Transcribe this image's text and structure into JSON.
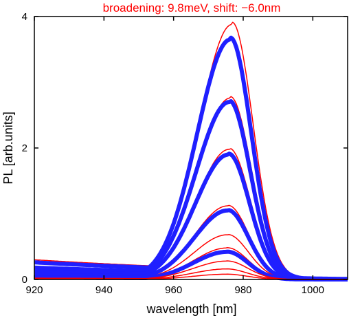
{
  "chart_data": {
    "type": "line",
    "title": "broadening: 9.8meV, shift: −6.0nm",
    "xlabel": "wavelength  [nm]",
    "ylabel": "PL  [arb.units]",
    "xlim": [
      920,
      1010
    ],
    "ylim": [
      0,
      4
    ],
    "x_ticks": [
      "920",
      "940",
      "960",
      "980",
      "1000"
    ],
    "y_ticks": [
      "0",
      "2",
      "4"
    ],
    "grid": false,
    "colors": {
      "thin": "#ff0000",
      "thick": "#1f1fff",
      "title": "#ff0000",
      "axis": "#000000"
    },
    "series": [
      {
        "style": "thin",
        "peak_x": 976.8,
        "peak_y": 3.88,
        "baseline_920": 0.3
      },
      {
        "style": "thick",
        "peak_x": 976.3,
        "peak_y": 3.65,
        "baseline_920": 0.26
      },
      {
        "style": "thin",
        "peak_x": 976.3,
        "peak_y": 2.76,
        "baseline_920": 0.2
      },
      {
        "style": "thick",
        "peak_x": 976.0,
        "peak_y": 2.7,
        "baseline_920": 0.18
      },
      {
        "style": "thin",
        "peak_x": 976.0,
        "peak_y": 1.98,
        "baseline_920": 0.14
      },
      {
        "style": "thick",
        "peak_x": 975.8,
        "peak_y": 1.9,
        "baseline_920": 0.12
      },
      {
        "style": "thin",
        "peak_x": 975.6,
        "peak_y": 1.12,
        "baseline_920": 0.08
      },
      {
        "style": "thick",
        "peak_x": 975.5,
        "peak_y": 1.05,
        "baseline_920": 0.07
      },
      {
        "style": "thin",
        "peak_x": 975.5,
        "peak_y": 0.68,
        "baseline_920": 0.04
      },
      {
        "style": "thin",
        "peak_x": 975.4,
        "peak_y": 0.48,
        "baseline_920": 0.03
      },
      {
        "style": "thick",
        "peak_x": 975.3,
        "peak_y": 0.42,
        "baseline_920": 0.03
      },
      {
        "style": "thin",
        "peak_x": 975.3,
        "peak_y": 0.28,
        "baseline_920": 0.02
      },
      {
        "style": "thin",
        "peak_x": 975.2,
        "peak_y": 0.16,
        "baseline_920": 0.01
      },
      {
        "style": "thin",
        "peak_x": 975.2,
        "peak_y": 0.08,
        "baseline_920": 0.005
      }
    ]
  }
}
